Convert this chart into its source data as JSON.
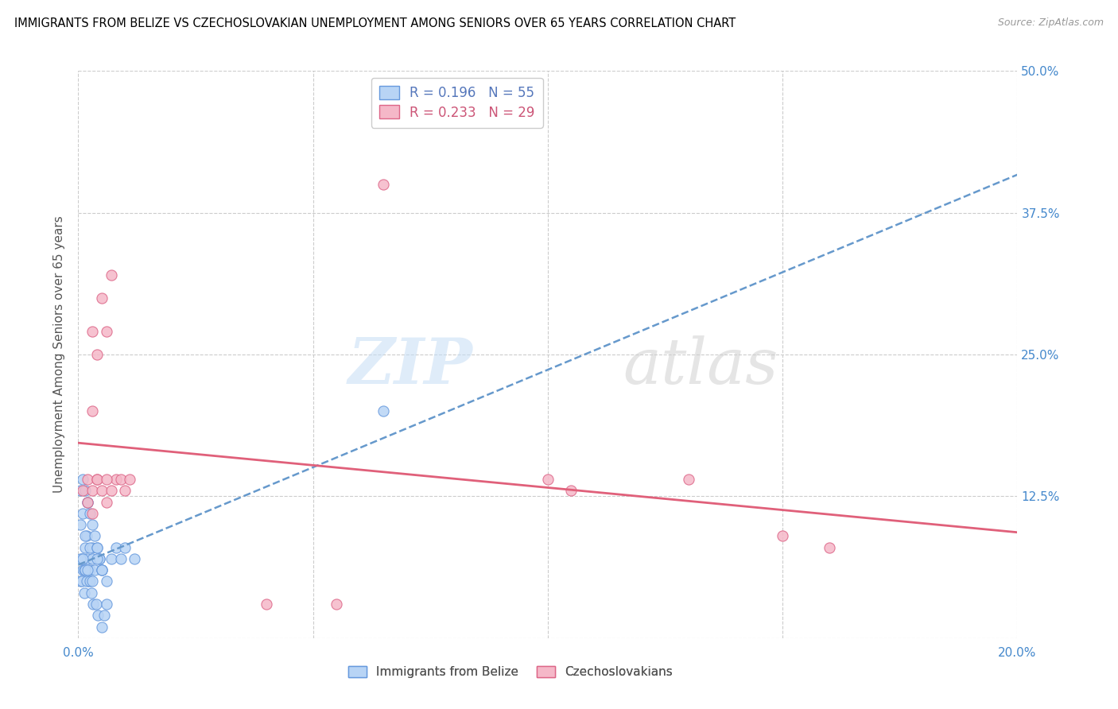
{
  "title": "IMMIGRANTS FROM BELIZE VS CZECHOSLOVAKIAN UNEMPLOYMENT AMONG SENIORS OVER 65 YEARS CORRELATION CHART",
  "source": "Source: ZipAtlas.com",
  "ylabel": "Unemployment Among Seniors over 65 years",
  "xlim": [
    0.0,
    0.2
  ],
  "ylim": [
    0.0,
    0.5
  ],
  "xtick_positions": [
    0.0,
    0.05,
    0.1,
    0.15,
    0.2
  ],
  "ytick_positions": [
    0.0,
    0.125,
    0.25,
    0.375,
    0.5
  ],
  "ytick_labels": [
    "",
    "12.5%",
    "25.0%",
    "37.5%",
    "50.0%"
  ],
  "legend_r_belize": "0.196",
  "legend_n_belize": "55",
  "legend_r_czech": "0.233",
  "legend_n_czech": "29",
  "color_belize_fill": "#b8d4f5",
  "color_belize_edge": "#6699dd",
  "color_czech_fill": "#f5b8c8",
  "color_czech_edge": "#dd6688",
  "color_trend_belize": "#6699cc",
  "color_trend_czech": "#e0607a",
  "belize_x": [
    0.0005,
    0.001,
    0.0008,
    0.0012,
    0.0015,
    0.002,
    0.0018,
    0.0022,
    0.0025,
    0.003,
    0.0005,
    0.001,
    0.0015,
    0.002,
    0.0025,
    0.003,
    0.0035,
    0.004,
    0.0045,
    0.005,
    0.0008,
    0.0012,
    0.0018,
    0.0028,
    0.0032,
    0.0038,
    0.0042,
    0.005,
    0.0055,
    0.006,
    0.0005,
    0.001,
    0.0015,
    0.002,
    0.0025,
    0.003,
    0.0035,
    0.004,
    0.0045,
    0.005,
    0.0005,
    0.001,
    0.0015,
    0.002,
    0.0025,
    0.003,
    0.004,
    0.005,
    0.006,
    0.007,
    0.008,
    0.009,
    0.01,
    0.012,
    0.065
  ],
  "belize_y": [
    0.05,
    0.06,
    0.07,
    0.06,
    0.08,
    0.07,
    0.09,
    0.05,
    0.06,
    0.08,
    0.1,
    0.11,
    0.09,
    0.12,
    0.08,
    0.07,
    0.06,
    0.08,
    0.07,
    0.06,
    0.05,
    0.04,
    0.05,
    0.04,
    0.03,
    0.03,
    0.02,
    0.01,
    0.02,
    0.03,
    0.13,
    0.14,
    0.13,
    0.12,
    0.11,
    0.1,
    0.09,
    0.08,
    0.07,
    0.06,
    0.07,
    0.07,
    0.06,
    0.06,
    0.05,
    0.05,
    0.07,
    0.06,
    0.05,
    0.07,
    0.08,
    0.07,
    0.08,
    0.07,
    0.2
  ],
  "czech_x": [
    0.001,
    0.002,
    0.003,
    0.004,
    0.003,
    0.004,
    0.005,
    0.006,
    0.007,
    0.008,
    0.009,
    0.01,
    0.011,
    0.003,
    0.004,
    0.005,
    0.006,
    0.04,
    0.055,
    0.065,
    0.1,
    0.105,
    0.13,
    0.15,
    0.16,
    0.002,
    0.003,
    0.006,
    0.007
  ],
  "czech_y": [
    0.13,
    0.14,
    0.13,
    0.25,
    0.27,
    0.14,
    0.3,
    0.27,
    0.32,
    0.14,
    0.14,
    0.13,
    0.14,
    0.2,
    0.14,
    0.13,
    0.12,
    0.03,
    0.03,
    0.4,
    0.14,
    0.13,
    0.14,
    0.09,
    0.08,
    0.12,
    0.11,
    0.14,
    0.13
  ]
}
